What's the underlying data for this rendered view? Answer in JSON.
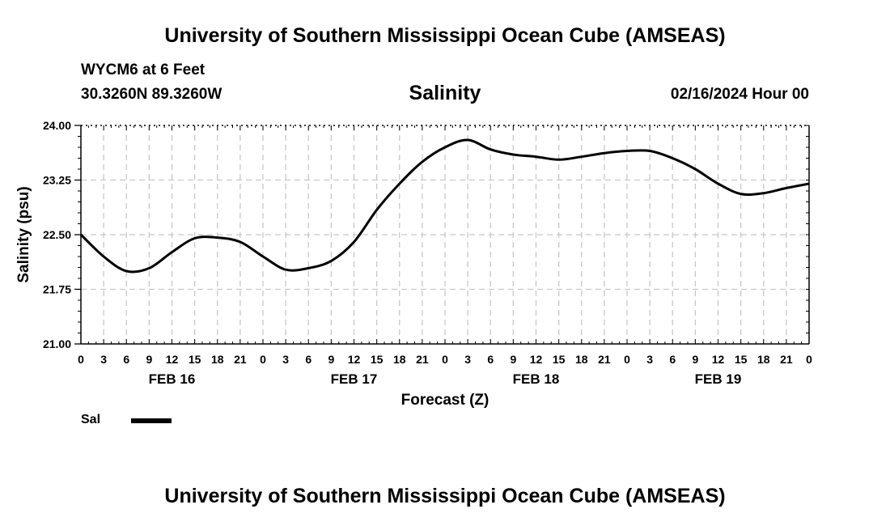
{
  "header": {
    "title": "University of Southern Mississippi Ocean Cube (AMSEAS)",
    "station": "WYCM6 at 6 Feet",
    "coords": "30.3260N  89.3260W",
    "datetime": "02/16/2024 Hour 00"
  },
  "footer": {
    "title": "University of Southern Mississippi Ocean Cube (AMSEAS)"
  },
  "legend": {
    "label": "Sal"
  },
  "colors": {
    "line": "#000000",
    "grid": "#c8c8c8"
  },
  "chart_data": {
    "type": "line",
    "title": "Salinity",
    "xlabel": "Forecast (Z)",
    "ylabel": "Salinity (psu)",
    "ylim": [
      21.0,
      24.0
    ],
    "xlim": [
      0,
      96
    ],
    "x_unit": "forecast hour",
    "y_ticks": [
      "24.00",
      "23.25",
      "22.50",
      "21.75",
      "21.00"
    ],
    "y_tick_values": [
      24.0,
      23.25,
      22.5,
      21.75,
      21.0
    ],
    "x_tick_hours": [
      0,
      3,
      6,
      9,
      12,
      15,
      18,
      21,
      24,
      27,
      30,
      33,
      36,
      39,
      42,
      45,
      48,
      51,
      54,
      57,
      60,
      63,
      66,
      69,
      72,
      75,
      78,
      81,
      84,
      87,
      90,
      93,
      96
    ],
    "x_tick_labels": [
      "0",
      "3",
      "6",
      "9",
      "12",
      "15",
      "18",
      "21",
      "0",
      "3",
      "6",
      "9",
      "12",
      "15",
      "18",
      "21",
      "0",
      "3",
      "6",
      "9",
      "12",
      "15",
      "18",
      "21",
      "0",
      "3",
      "6",
      "9",
      "12",
      "15",
      "18",
      "21",
      "0"
    ],
    "date_labels": [
      {
        "hour": 12,
        "label": "FEB 16"
      },
      {
        "hour": 36,
        "label": "FEB 17"
      },
      {
        "hour": 60,
        "label": "FEB 18"
      },
      {
        "hour": 84,
        "label": "FEB 19"
      }
    ],
    "grid": true,
    "legend_position": "bottom-left",
    "series": [
      {
        "name": "Sal",
        "x": [
          0,
          3,
          6,
          9,
          12,
          15,
          18,
          21,
          24,
          27,
          30,
          33,
          36,
          39,
          42,
          45,
          48,
          51,
          54,
          57,
          60,
          63,
          66,
          69,
          72,
          75,
          78,
          81,
          84,
          87,
          90,
          93,
          96
        ],
        "values": [
          22.5,
          22.2,
          22.0,
          22.04,
          22.26,
          22.45,
          22.46,
          22.4,
          22.2,
          22.02,
          22.04,
          22.14,
          22.4,
          22.84,
          23.2,
          23.5,
          23.7,
          23.8,
          23.67,
          23.6,
          23.57,
          23.53,
          23.57,
          23.62,
          23.65,
          23.65,
          23.55,
          23.4,
          23.2,
          23.06,
          23.07,
          23.14,
          23.2
        ]
      }
    ]
  }
}
